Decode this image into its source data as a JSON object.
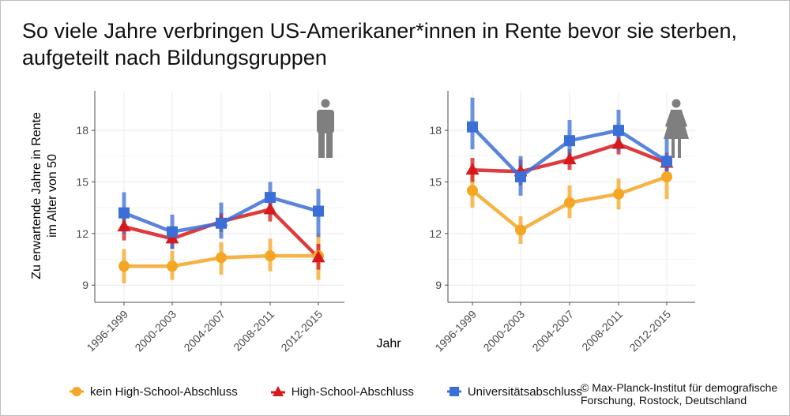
{
  "title": "So viele Jahre verbringen US-Amerikaner*innen in Rente bevor sie sterben, aufgeteilt nach Bildungsgruppen",
  "copyright_line1": "© Max-Planck-Institut für demografische",
  "copyright_line2": "Forschung, Rostock, Deutschland",
  "colors": {
    "orange": "#f5a623",
    "red": "#d7191c",
    "blue": "#3b6fd8",
    "icon": "#7f7f7f",
    "axis": "#4d4d4d",
    "grid": "#ebebeb"
  },
  "legend": [
    {
      "label": "kein High-School-Abschluss",
      "color": "#f5a623",
      "shape": "circle"
    },
    {
      "label": "High-School-Abschluss",
      "color": "#d7191c",
      "shape": "triangle"
    },
    {
      "label": "Universitätsabschluss",
      "color": "#3b6fd8",
      "shape": "square"
    }
  ],
  "chart_data": [
    {
      "type": "line",
      "panel_icon": "male-figure-icon",
      "xlabel": "Jahr",
      "ylabel": "Zu erwartende Jahre in Rente im Alter von 50",
      "categories": [
        "1996-1999",
        "2000-2003",
        "2004-2007",
        "2008-2011",
        "2012-2015"
      ],
      "yticks": [
        9,
        12,
        15,
        18
      ],
      "ylim": [
        8.0,
        20.3
      ],
      "grid": true,
      "series": [
        {
          "name": "kein High-School-Abschluss",
          "color": "#f5a623",
          "marker": "circle",
          "values": [
            10.1,
            10.1,
            10.6,
            10.7,
            10.7
          ],
          "lower": [
            9.1,
            9.3,
            9.6,
            9.8,
            9.3
          ],
          "upper": [
            11.1,
            11.0,
            11.5,
            11.7,
            12.0
          ]
        },
        {
          "name": "High-School-Abschluss",
          "color": "#d7191c",
          "marker": "triangle",
          "values": [
            12.4,
            11.7,
            12.7,
            13.4,
            10.6
          ],
          "lower": [
            11.6,
            11.1,
            12.1,
            12.7,
            9.9
          ],
          "upper": [
            12.9,
            12.2,
            13.2,
            14.0,
            11.4
          ]
        },
        {
          "name": "Universitätsabschluss",
          "color": "#3b6fd8",
          "marker": "square",
          "values": [
            13.2,
            12.1,
            12.6,
            14.1,
            13.3
          ],
          "lower": [
            12.0,
            11.1,
            11.7,
            13.1,
            11.8
          ],
          "upper": [
            14.4,
            13.1,
            13.8,
            15.0,
            14.6
          ]
        }
      ]
    },
    {
      "type": "line",
      "panel_icon": "female-figure-icon",
      "xlabel": "Jahr",
      "ylabel": "",
      "categories": [
        "1996-1999",
        "2000-2003",
        "2004-2007",
        "2008-2011",
        "2012-2015"
      ],
      "yticks": [
        9,
        12,
        15,
        18
      ],
      "ylim": [
        8.0,
        20.3
      ],
      "grid": true,
      "series": [
        {
          "name": "kein High-School-Abschluss",
          "color": "#f5a623",
          "marker": "circle",
          "values": [
            14.5,
            12.2,
            13.8,
            14.3,
            15.3
          ],
          "lower": [
            13.5,
            11.4,
            12.9,
            13.4,
            14.0
          ],
          "upper": [
            15.5,
            13.0,
            14.8,
            15.2,
            16.5
          ]
        },
        {
          "name": "High-School-Abschluss",
          "color": "#d7191c",
          "marker": "triangle",
          "values": [
            15.7,
            15.6,
            16.3,
            17.2,
            16.1
          ],
          "lower": [
            15.0,
            14.8,
            15.7,
            16.6,
            15.4
          ],
          "upper": [
            16.4,
            16.3,
            16.9,
            17.8,
            16.7
          ]
        },
        {
          "name": "Universitätsabschluss",
          "color": "#3b6fd8",
          "marker": "square",
          "values": [
            18.2,
            15.3,
            17.4,
            18.0,
            16.2
          ],
          "lower": [
            16.9,
            14.2,
            16.1,
            16.8,
            15.0
          ],
          "upper": [
            19.9,
            16.5,
            18.6,
            19.2,
            17.5
          ]
        }
      ]
    }
  ]
}
